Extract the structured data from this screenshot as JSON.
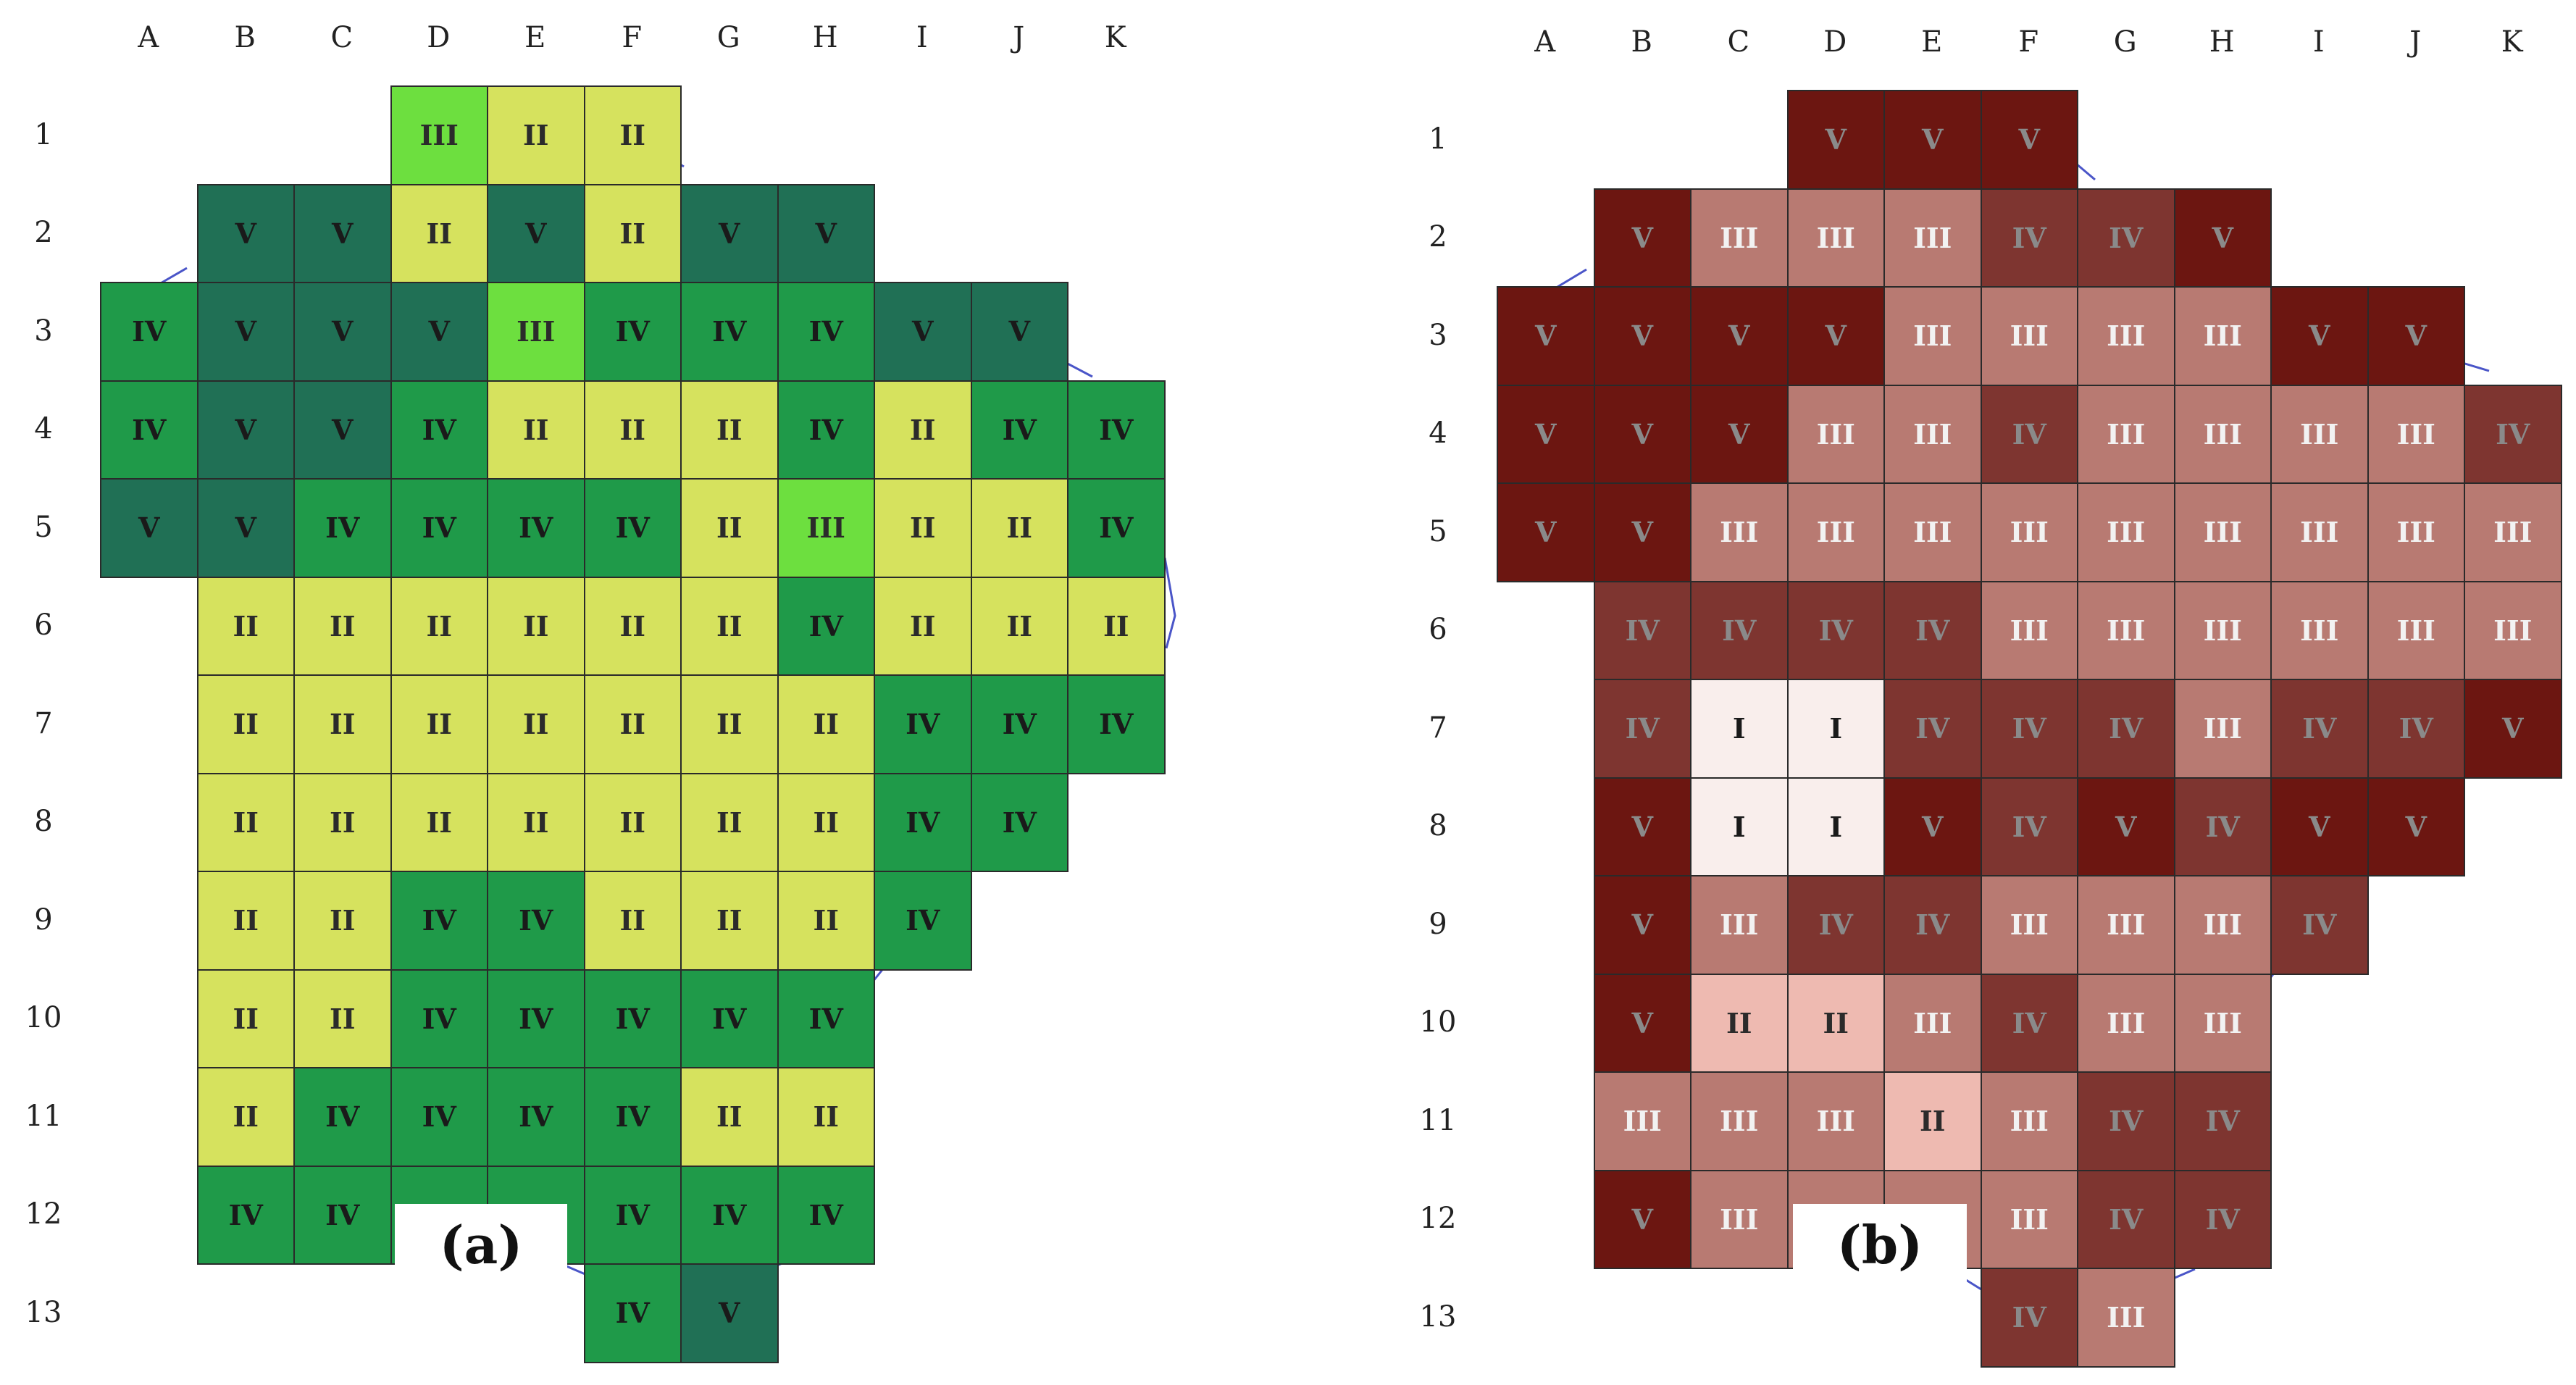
{
  "columns": [
    "A",
    "B",
    "C",
    "D",
    "E",
    "F",
    "G",
    "H",
    "I",
    "J",
    "K"
  ],
  "rows": [
    "1",
    "2",
    "3",
    "4",
    "5",
    "6",
    "7",
    "8",
    "9",
    "10",
    "11",
    "12",
    "13"
  ],
  "panels": [
    {
      "label": "(a)",
      "colors": {
        "II": "#d6e25e",
        "III": "#6ddf3f",
        "IV": "#1f9a49",
        "V": "#207055"
      },
      "text_colors": {
        "II": "#2b2b2b",
        "III": "#2b2b2b",
        "IV": "#1a1a1a",
        "V": "#1a1a1a"
      },
      "cells": [
        {
          "r": 1,
          "c": "D",
          "v": "III"
        },
        {
          "r": 1,
          "c": "E",
          "v": "II"
        },
        {
          "r": 1,
          "c": "F",
          "v": "II"
        },
        {
          "r": 2,
          "c": "B",
          "v": "V"
        },
        {
          "r": 2,
          "c": "C",
          "v": "V"
        },
        {
          "r": 2,
          "c": "D",
          "v": "II"
        },
        {
          "r": 2,
          "c": "E",
          "v": "V"
        },
        {
          "r": 2,
          "c": "F",
          "v": "II"
        },
        {
          "r": 2,
          "c": "G",
          "v": "V"
        },
        {
          "r": 2,
          "c": "H",
          "v": "V"
        },
        {
          "r": 3,
          "c": "A",
          "v": "IV"
        },
        {
          "r": 3,
          "c": "B",
          "v": "V"
        },
        {
          "r": 3,
          "c": "C",
          "v": "V"
        },
        {
          "r": 3,
          "c": "D",
          "v": "V"
        },
        {
          "r": 3,
          "c": "E",
          "v": "III"
        },
        {
          "r": 3,
          "c": "F",
          "v": "IV"
        },
        {
          "r": 3,
          "c": "G",
          "v": "IV"
        },
        {
          "r": 3,
          "c": "H",
          "v": "IV"
        },
        {
          "r": 3,
          "c": "I",
          "v": "V"
        },
        {
          "r": 3,
          "c": "J",
          "v": "V"
        },
        {
          "r": 4,
          "c": "A",
          "v": "IV"
        },
        {
          "r": 4,
          "c": "B",
          "v": "V"
        },
        {
          "r": 4,
          "c": "C",
          "v": "V"
        },
        {
          "r": 4,
          "c": "D",
          "v": "IV"
        },
        {
          "r": 4,
          "c": "E",
          "v": "II"
        },
        {
          "r": 4,
          "c": "F",
          "v": "II"
        },
        {
          "r": 4,
          "c": "G",
          "v": "II"
        },
        {
          "r": 4,
          "c": "H",
          "v": "IV"
        },
        {
          "r": 4,
          "c": "I",
          "v": "II"
        },
        {
          "r": 4,
          "c": "J",
          "v": "IV"
        },
        {
          "r": 4,
          "c": "K",
          "v": "IV"
        },
        {
          "r": 5,
          "c": "A",
          "v": "V"
        },
        {
          "r": 5,
          "c": "B",
          "v": "V"
        },
        {
          "r": 5,
          "c": "C",
          "v": "IV"
        },
        {
          "r": 5,
          "c": "D",
          "v": "IV"
        },
        {
          "r": 5,
          "c": "E",
          "v": "IV"
        },
        {
          "r": 5,
          "c": "F",
          "v": "IV"
        },
        {
          "r": 5,
          "c": "G",
          "v": "II"
        },
        {
          "r": 5,
          "c": "H",
          "v": "III"
        },
        {
          "r": 5,
          "c": "I",
          "v": "II"
        },
        {
          "r": 5,
          "c": "J",
          "v": "II"
        },
        {
          "r": 5,
          "c": "K",
          "v": "IV"
        },
        {
          "r": 6,
          "c": "B",
          "v": "II"
        },
        {
          "r": 6,
          "c": "C",
          "v": "II"
        },
        {
          "r": 6,
          "c": "D",
          "v": "II"
        },
        {
          "r": 6,
          "c": "E",
          "v": "II"
        },
        {
          "r": 6,
          "c": "F",
          "v": "II"
        },
        {
          "r": 6,
          "c": "G",
          "v": "II"
        },
        {
          "r": 6,
          "c": "H",
          "v": "IV"
        },
        {
          "r": 6,
          "c": "I",
          "v": "II"
        },
        {
          "r": 6,
          "c": "J",
          "v": "II"
        },
        {
          "r": 6,
          "c": "K",
          "v": "II"
        },
        {
          "r": 7,
          "c": "B",
          "v": "II"
        },
        {
          "r": 7,
          "c": "C",
          "v": "II"
        },
        {
          "r": 7,
          "c": "D",
          "v": "II"
        },
        {
          "r": 7,
          "c": "E",
          "v": "II"
        },
        {
          "r": 7,
          "c": "F",
          "v": "II"
        },
        {
          "r": 7,
          "c": "G",
          "v": "II"
        },
        {
          "r": 7,
          "c": "H",
          "v": "II"
        },
        {
          "r": 7,
          "c": "I",
          "v": "IV"
        },
        {
          "r": 7,
          "c": "J",
          "v": "IV"
        },
        {
          "r": 7,
          "c": "K",
          "v": "IV"
        },
        {
          "r": 8,
          "c": "B",
          "v": "II"
        },
        {
          "r": 8,
          "c": "C",
          "v": "II"
        },
        {
          "r": 8,
          "c": "D",
          "v": "II"
        },
        {
          "r": 8,
          "c": "E",
          "v": "II"
        },
        {
          "r": 8,
          "c": "F",
          "v": "II"
        },
        {
          "r": 8,
          "c": "G",
          "v": "II"
        },
        {
          "r": 8,
          "c": "H",
          "v": "II"
        },
        {
          "r": 8,
          "c": "I",
          "v": "IV"
        },
        {
          "r": 8,
          "c": "J",
          "v": "IV"
        },
        {
          "r": 9,
          "c": "B",
          "v": "II"
        },
        {
          "r": 9,
          "c": "C",
          "v": "II"
        },
        {
          "r": 9,
          "c": "D",
          "v": "IV"
        },
        {
          "r": 9,
          "c": "E",
          "v": "IV"
        },
        {
          "r": 9,
          "c": "F",
          "v": "II"
        },
        {
          "r": 9,
          "c": "G",
          "v": "II"
        },
        {
          "r": 9,
          "c": "H",
          "v": "II"
        },
        {
          "r": 9,
          "c": "I",
          "v": "IV"
        },
        {
          "r": 10,
          "c": "B",
          "v": "II"
        },
        {
          "r": 10,
          "c": "C",
          "v": "II"
        },
        {
          "r": 10,
          "c": "D",
          "v": "IV"
        },
        {
          "r": 10,
          "c": "E",
          "v": "IV"
        },
        {
          "r": 10,
          "c": "F",
          "v": "IV"
        },
        {
          "r": 10,
          "c": "G",
          "v": "IV"
        },
        {
          "r": 10,
          "c": "H",
          "v": "IV"
        },
        {
          "r": 11,
          "c": "B",
          "v": "II"
        },
        {
          "r": 11,
          "c": "C",
          "v": "IV"
        },
        {
          "r": 11,
          "c": "D",
          "v": "IV"
        },
        {
          "r": 11,
          "c": "E",
          "v": "IV"
        },
        {
          "r": 11,
          "c": "F",
          "v": "IV"
        },
        {
          "r": 11,
          "c": "G",
          "v": "II"
        },
        {
          "r": 11,
          "c": "H",
          "v": "II"
        },
        {
          "r": 12,
          "c": "B",
          "v": "IV"
        },
        {
          "r": 12,
          "c": "C",
          "v": "IV"
        },
        {
          "r": 12,
          "c": "D",
          "v": "IV"
        },
        {
          "r": 12,
          "c": "E",
          "v": "IV"
        },
        {
          "r": 12,
          "c": "F",
          "v": "IV"
        },
        {
          "r": 12,
          "c": "G",
          "v": "IV"
        },
        {
          "r": 12,
          "c": "H",
          "v": "IV"
        },
        {
          "r": 13,
          "c": "F",
          "v": "IV"
        },
        {
          "r": 13,
          "c": "G",
          "v": "V"
        }
      ]
    },
    {
      "label": "(b)",
      "colors": {
        "I": "#f9eeec",
        "II": "#eebab1",
        "III": "#b87a72",
        "IV": "#7e3530",
        "V": "#6c1611"
      },
      "text_colors": {
        "I": "#1a1a1a",
        "II": "#2b2b2b",
        "III": "#f2f2f2",
        "IV": "#8a8a8a",
        "V": "#8a8a8a"
      },
      "cells": [
        {
          "r": 1,
          "c": "D",
          "v": "V"
        },
        {
          "r": 1,
          "c": "E",
          "v": "V"
        },
        {
          "r": 1,
          "c": "F",
          "v": "V"
        },
        {
          "r": 2,
          "c": "B",
          "v": "V"
        },
        {
          "r": 2,
          "c": "C",
          "v": "III"
        },
        {
          "r": 2,
          "c": "D",
          "v": "III"
        },
        {
          "r": 2,
          "c": "E",
          "v": "III"
        },
        {
          "r": 2,
          "c": "F",
          "v": "IV"
        },
        {
          "r": 2,
          "c": "G",
          "v": "IV"
        },
        {
          "r": 2,
          "c": "H",
          "v": "V"
        },
        {
          "r": 3,
          "c": "A",
          "v": "V"
        },
        {
          "r": 3,
          "c": "B",
          "v": "V"
        },
        {
          "r": 3,
          "c": "C",
          "v": "V"
        },
        {
          "r": 3,
          "c": "D",
          "v": "V"
        },
        {
          "r": 3,
          "c": "E",
          "v": "III"
        },
        {
          "r": 3,
          "c": "F",
          "v": "III"
        },
        {
          "r": 3,
          "c": "G",
          "v": "III"
        },
        {
          "r": 3,
          "c": "H",
          "v": "III"
        },
        {
          "r": 3,
          "c": "I",
          "v": "V"
        },
        {
          "r": 3,
          "c": "J",
          "v": "V"
        },
        {
          "r": 4,
          "c": "A",
          "v": "V"
        },
        {
          "r": 4,
          "c": "B",
          "v": "V"
        },
        {
          "r": 4,
          "c": "C",
          "v": "V"
        },
        {
          "r": 4,
          "c": "D",
          "v": "III"
        },
        {
          "r": 4,
          "c": "E",
          "v": "III"
        },
        {
          "r": 4,
          "c": "F",
          "v": "IV"
        },
        {
          "r": 4,
          "c": "G",
          "v": "III"
        },
        {
          "r": 4,
          "c": "H",
          "v": "III"
        },
        {
          "r": 4,
          "c": "I",
          "v": "III"
        },
        {
          "r": 4,
          "c": "J",
          "v": "III"
        },
        {
          "r": 4,
          "c": "K",
          "v": "IV"
        },
        {
          "r": 5,
          "c": "A",
          "v": "V"
        },
        {
          "r": 5,
          "c": "B",
          "v": "V"
        },
        {
          "r": 5,
          "c": "C",
          "v": "III"
        },
        {
          "r": 5,
          "c": "D",
          "v": "III"
        },
        {
          "r": 5,
          "c": "E",
          "v": "III"
        },
        {
          "r": 5,
          "c": "F",
          "v": "III"
        },
        {
          "r": 5,
          "c": "G",
          "v": "III"
        },
        {
          "r": 5,
          "c": "H",
          "v": "III"
        },
        {
          "r": 5,
          "c": "I",
          "v": "III"
        },
        {
          "r": 5,
          "c": "J",
          "v": "III"
        },
        {
          "r": 5,
          "c": "K",
          "v": "III"
        },
        {
          "r": 6,
          "c": "B",
          "v": "IV"
        },
        {
          "r": 6,
          "c": "C",
          "v": "IV"
        },
        {
          "r": 6,
          "c": "D",
          "v": "IV"
        },
        {
          "r": 6,
          "c": "E",
          "v": "IV"
        },
        {
          "r": 6,
          "c": "F",
          "v": "III"
        },
        {
          "r": 6,
          "c": "G",
          "v": "III"
        },
        {
          "r": 6,
          "c": "H",
          "v": "III"
        },
        {
          "r": 6,
          "c": "I",
          "v": "III"
        },
        {
          "r": 6,
          "c": "J",
          "v": "III"
        },
        {
          "r": 6,
          "c": "K",
          "v": "III"
        },
        {
          "r": 7,
          "c": "B",
          "v": "IV"
        },
        {
          "r": 7,
          "c": "C",
          "v": "I"
        },
        {
          "r": 7,
          "c": "D",
          "v": "I"
        },
        {
          "r": 7,
          "c": "E",
          "v": "IV"
        },
        {
          "r": 7,
          "c": "F",
          "v": "IV"
        },
        {
          "r": 7,
          "c": "G",
          "v": "IV"
        },
        {
          "r": 7,
          "c": "H",
          "v": "III"
        },
        {
          "r": 7,
          "c": "I",
          "v": "IV"
        },
        {
          "r": 7,
          "c": "J",
          "v": "IV"
        },
        {
          "r": 7,
          "c": "K",
          "v": "V"
        },
        {
          "r": 8,
          "c": "B",
          "v": "V"
        },
        {
          "r": 8,
          "c": "C",
          "v": "I"
        },
        {
          "r": 8,
          "c": "D",
          "v": "I"
        },
        {
          "r": 8,
          "c": "E",
          "v": "V"
        },
        {
          "r": 8,
          "c": "F",
          "v": "IV"
        },
        {
          "r": 8,
          "c": "G",
          "v": "V"
        },
        {
          "r": 8,
          "c": "H",
          "v": "IV"
        },
        {
          "r": 8,
          "c": "I",
          "v": "V"
        },
        {
          "r": 8,
          "c": "J",
          "v": "V"
        },
        {
          "r": 9,
          "c": "B",
          "v": "V"
        },
        {
          "r": 9,
          "c": "C",
          "v": "III"
        },
        {
          "r": 9,
          "c": "D",
          "v": "IV"
        },
        {
          "r": 9,
          "c": "E",
          "v": "IV"
        },
        {
          "r": 9,
          "c": "F",
          "v": "III"
        },
        {
          "r": 9,
          "c": "G",
          "v": "III"
        },
        {
          "r": 9,
          "c": "H",
          "v": "III"
        },
        {
          "r": 9,
          "c": "I",
          "v": "IV"
        },
        {
          "r": 10,
          "c": "B",
          "v": "V"
        },
        {
          "r": 10,
          "c": "C",
          "v": "II"
        },
        {
          "r": 10,
          "c": "D",
          "v": "II"
        },
        {
          "r": 10,
          "c": "E",
          "v": "III"
        },
        {
          "r": 10,
          "c": "F",
          "v": "IV"
        },
        {
          "r": 10,
          "c": "G",
          "v": "III"
        },
        {
          "r": 10,
          "c": "H",
          "v": "III"
        },
        {
          "r": 11,
          "c": "B",
          "v": "III"
        },
        {
          "r": 11,
          "c": "C",
          "v": "III"
        },
        {
          "r": 11,
          "c": "D",
          "v": "III"
        },
        {
          "r": 11,
          "c": "E",
          "v": "II"
        },
        {
          "r": 11,
          "c": "F",
          "v": "III"
        },
        {
          "r": 11,
          "c": "G",
          "v": "IV"
        },
        {
          "r": 11,
          "c": "H",
          "v": "IV"
        },
        {
          "r": 12,
          "c": "B",
          "v": "V"
        },
        {
          "r": 12,
          "c": "C",
          "v": "III"
        },
        {
          "r": 12,
          "c": "D",
          "v": "III"
        },
        {
          "r": 12,
          "c": "E",
          "v": "III"
        },
        {
          "r": 12,
          "c": "F",
          "v": "III"
        },
        {
          "r": 12,
          "c": "G",
          "v": "IV"
        },
        {
          "r": 12,
          "c": "H",
          "v": "IV"
        },
        {
          "r": 13,
          "c": "F",
          "v": "IV"
        },
        {
          "r": 13,
          "c": "G",
          "v": "III"
        }
      ]
    }
  ]
}
